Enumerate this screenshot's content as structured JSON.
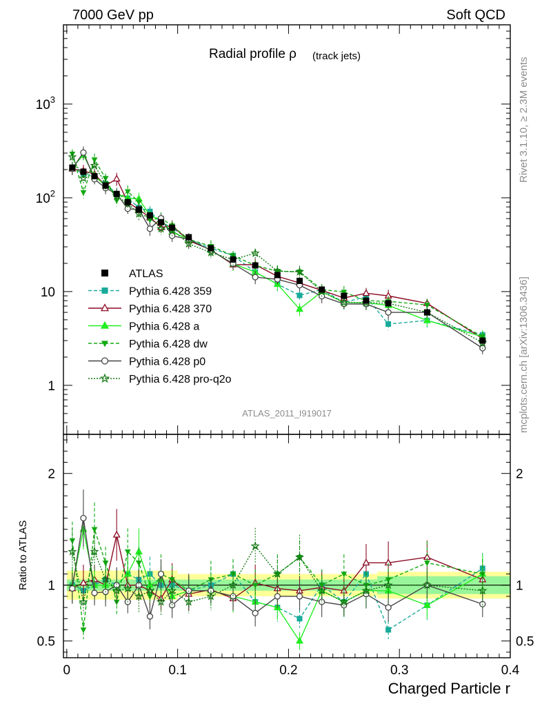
{
  "header": {
    "left": "7000 GeV pp",
    "right": "Soft QCD"
  },
  "side": {
    "rivet": "Rivet 3.1.10, ≥ 2.3M events",
    "mcplots": "mcplots.cern.ch [arXiv:1306.3436]"
  },
  "chart_data": {
    "type": "line",
    "title_main": "Radial profile ρ",
    "title_sub": "(track jets)",
    "analysis_id": "ATLAS_2011_I919017",
    "xlabel": "Charged Particle r",
    "ylabel_ratio": "Ratio to ATLAS",
    "xlim": [
      -0.003,
      0.4
    ],
    "ylim_main": [
      0.3,
      7000
    ],
    "yscale_main": "log",
    "ylim_ratio": [
      0.35,
      2.35
    ],
    "x_ticks": [
      "0",
      "0.1",
      "0.2",
      "0.3",
      "0.4"
    ],
    "y_ticks_main": [
      "1",
      "10",
      "10^2",
      "10^3"
    ],
    "y_ticks_ratio": [
      "0.5",
      "1",
      "2"
    ],
    "legend_position": "center-left",
    "x": [
      0.005,
      0.015,
      0.025,
      0.035,
      0.045,
      0.055,
      0.065,
      0.075,
      0.085,
      0.095,
      0.11,
      0.13,
      0.15,
      0.17,
      0.19,
      0.21,
      0.23,
      0.25,
      0.27,
      0.29,
      0.325,
      0.375
    ],
    "data": {
      "name": "ATLAS",
      "color": "#000000",
      "values": [
        210,
        190,
        170,
        135,
        110,
        90,
        75,
        65,
        55,
        48,
        38,
        29,
        22,
        19,
        15,
        13,
        10.5,
        9,
        8,
        7.5,
        6,
        3
      ]
    },
    "series": [
      {
        "name": "Pythia 6.428 359",
        "color": "#19aa9a",
        "marker": "square",
        "dash": "dashed",
        "ratio": [
          1.0,
          0.95,
          1.0,
          1.05,
          1.0,
          1.1,
          1.05,
          1.1,
          1.0,
          1.0,
          0.95,
          1.0,
          1.1,
          0.85,
          0.8,
          0.7,
          1.0,
          0.85,
          1.1,
          0.6,
          0.82,
          1.15
        ]
      },
      {
        "name": "Pythia 6.428 370",
        "color": "#8b0a24",
        "marker": "triangle-open",
        "dash": "solid",
        "ratio": [
          0.97,
          1.02,
          1.05,
          1.0,
          1.45,
          1.0,
          1.0,
          0.95,
          0.88,
          1.05,
          0.92,
          0.96,
          0.88,
          1.02,
          0.97,
          0.95,
          0.98,
          0.95,
          1.2,
          1.2,
          1.25,
          1.05
        ]
      },
      {
        "name": "Pythia 6.428 a",
        "color": "#22ee22",
        "marker": "triangle",
        "dash": "solid",
        "ratio": [
          1.0,
          1.5,
          1.0,
          1.0,
          1.0,
          1.1,
          1.3,
          1.0,
          1.05,
          0.9,
          0.95,
          0.95,
          0.9,
          0.85,
          0.8,
          0.5,
          0.95,
          0.85,
          0.95,
          0.95,
          0.82,
          1.1
        ]
      },
      {
        "name": "Pythia 6.428 dw",
        "color": "#11aa11",
        "marker": "triangle-down",
        "dash": "dashed",
        "ratio": [
          1.4,
          0.6,
          1.5,
          1.2,
          0.85,
          1.3,
          1.2,
          0.9,
          1.1,
          1.05,
          0.95,
          1.05,
          1.1,
          1.0,
          1.1,
          1.25,
          1.0,
          1.1,
          1.0,
          1.05,
          1.2,
          1.1
        ]
      },
      {
        "name": "Pythia 6.428 p0",
        "color": "#444444",
        "marker": "circle-open",
        "dash": "solid",
        "ratio": [
          0.97,
          1.6,
          0.93,
          0.94,
          1.0,
          0.85,
          1.0,
          0.72,
          1.1,
          0.82,
          0.95,
          0.95,
          0.9,
          0.75,
          0.9,
          0.9,
          0.85,
          0.82,
          0.92,
          0.8,
          1.0,
          0.83
        ]
      },
      {
        "name": "Pythia 6.428 pro-q2o",
        "color": "#117711",
        "marker": "star",
        "dash": "dotted",
        "ratio": [
          1.3,
          0.85,
          1.3,
          1.05,
          0.95,
          0.97,
          0.9,
          0.95,
          0.85,
          0.95,
          0.85,
          0.9,
          1.0,
          1.35,
          1.1,
          1.25,
          0.95,
          0.85,
          0.95,
          1.0,
          1.0,
          0.95
        ]
      }
    ],
    "band_ratio": [
      {
        "x0": 0.0,
        "x1": 0.1,
        "stat": 0.05,
        "total": 0.13
      },
      {
        "x0": 0.1,
        "x1": 0.28,
        "stat": 0.05,
        "total": 0.1
      },
      {
        "x0": 0.28,
        "x1": 0.4,
        "stat": 0.08,
        "total": 0.12
      }
    ]
  }
}
